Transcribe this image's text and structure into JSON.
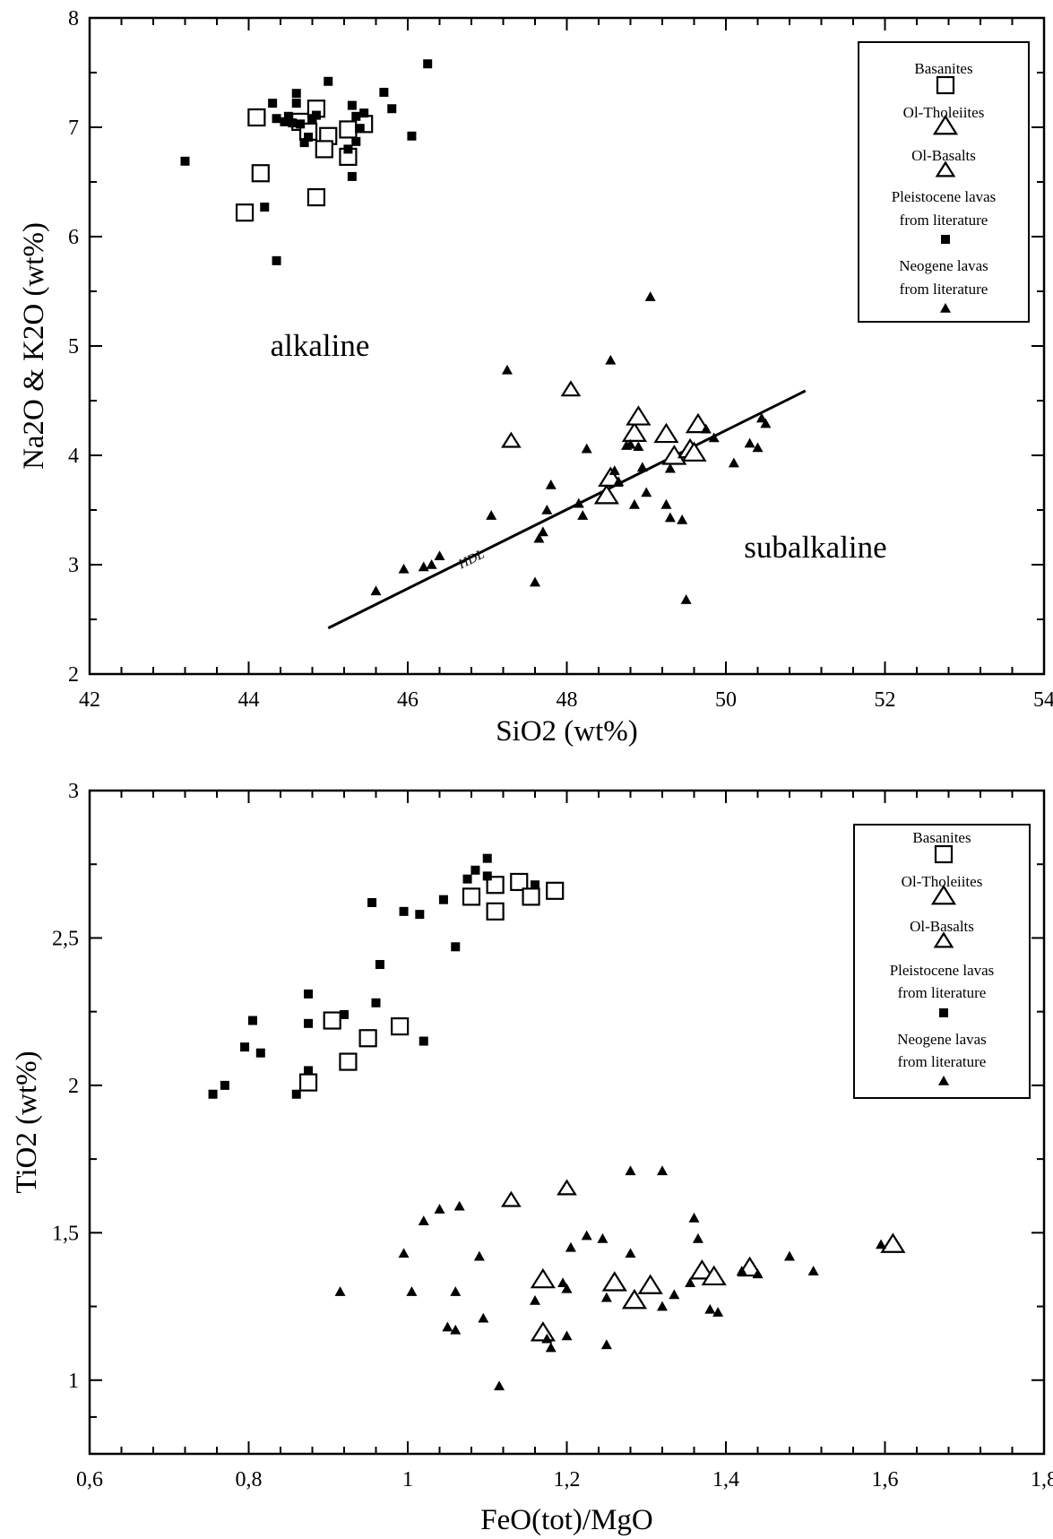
{
  "chart_data": [
    {
      "type": "scatter",
      "xlabel": "SiO2 (wt%)",
      "ylabel": "Na2O & K2O (wt%)",
      "xlim": [
        42,
        54
      ],
      "ylim": [
        2,
        8
      ],
      "xticks": [
        "42",
        "44",
        "46",
        "48",
        "50",
        "52",
        "54"
      ],
      "yticks": [
        "2",
        "3",
        "4",
        "5",
        "6",
        "7",
        "8"
      ],
      "annotations": {
        "upper": "alkaline",
        "lower": "subalkaline",
        "line": "HDL"
      },
      "line": {
        "label": "HDL",
        "points": [
          [
            45.0,
            2.42
          ],
          [
            51.0,
            4.59
          ]
        ]
      },
      "legend_position": "top-right",
      "legend": [
        {
          "label": "Basanites",
          "marker": "open-square"
        },
        {
          "label": "Ol-Tholeiites",
          "marker": "open-triangle"
        },
        {
          "label": "Ol-Basalts",
          "marker": "open-triangle-small"
        },
        {
          "label": "Pleistocene lavas from literature",
          "marker": "filled-square"
        },
        {
          "label": "Neogene lavas from literature",
          "marker": "filled-triangle"
        }
      ],
      "series": [
        {
          "name": "Basanites",
          "marker": "open-square",
          "points": [
            [
              44.1,
              7.09
            ],
            [
              44.15,
              6.58
            ],
            [
              43.95,
              6.22
            ],
            [
              44.85,
              6.36
            ],
            [
              44.65,
              7.05
            ],
            [
              44.85,
              7.17
            ],
            [
              45.0,
              6.92
            ],
            [
              44.95,
              6.8
            ],
            [
              45.25,
              6.98
            ],
            [
              45.45,
              7.03
            ],
            [
              45.25,
              6.73
            ],
            [
              44.75,
              6.96
            ]
          ]
        },
        {
          "name": "Ol-Tholeiites",
          "marker": "open-triangle",
          "points": [
            [
              48.55,
              3.79
            ],
            [
              48.85,
              4.2
            ],
            [
              48.9,
              4.35
            ],
            [
              49.25,
              4.19
            ],
            [
              49.35,
              3.99
            ],
            [
              49.55,
              4.05
            ],
            [
              49.6,
              4.02
            ],
            [
              49.65,
              4.28
            ],
            [
              48.5,
              3.63
            ]
          ]
        },
        {
          "name": "Ol-Basalts",
          "marker": "open-triangle-small",
          "points": [
            [
              48.05,
              4.6
            ],
            [
              47.3,
              4.13
            ]
          ]
        },
        {
          "name": "Pleistocene lavas from literature",
          "marker": "filled-square",
          "points": [
            [
              43.2,
              6.69
            ],
            [
              44.3,
              7.22
            ],
            [
              44.35,
              7.08
            ],
            [
              44.45,
              7.05
            ],
            [
              44.5,
              7.1
            ],
            [
              44.55,
              7.04
            ],
            [
              44.6,
              7.31
            ],
            [
              44.6,
              7.22
            ],
            [
              44.65,
              7.03
            ],
            [
              44.7,
              6.86
            ],
            [
              44.75,
              6.91
            ],
            [
              44.8,
              7.08
            ],
            [
              45.0,
              7.42
            ],
            [
              45.3,
              7.2
            ],
            [
              45.35,
              7.1
            ],
            [
              45.4,
              6.99
            ],
            [
              45.35,
              6.87
            ],
            [
              45.25,
              6.8
            ],
            [
              45.3,
              6.55
            ],
            [
              45.7,
              7.32
            ],
            [
              45.8,
              7.17
            ],
            [
              46.05,
              6.92
            ],
            [
              46.25,
              7.58
            ],
            [
              44.2,
              6.27
            ],
            [
              44.35,
              5.78
            ],
            [
              44.85,
              7.11
            ],
            [
              45.45,
              7.13
            ]
          ]
        },
        {
          "name": "Neogene lavas from literature",
          "marker": "filled-triangle",
          "points": [
            [
              45.6,
              2.76
            ],
            [
              45.95,
              2.96
            ],
            [
              46.2,
              2.98
            ],
            [
              46.3,
              3.0
            ],
            [
              46.4,
              3.08
            ],
            [
              47.05,
              3.45
            ],
            [
              47.25,
              4.78
            ],
            [
              47.6,
              2.84
            ],
            [
              47.65,
              3.24
            ],
            [
              47.7,
              3.3
            ],
            [
              47.75,
              3.5
            ],
            [
              47.8,
              3.73
            ],
            [
              48.15,
              3.56
            ],
            [
              48.2,
              3.45
            ],
            [
              48.25,
              4.06
            ],
            [
              48.55,
              4.87
            ],
            [
              48.6,
              3.86
            ],
            [
              48.65,
              3.76
            ],
            [
              48.75,
              4.09
            ],
            [
              48.8,
              4.1
            ],
            [
              48.85,
              3.55
            ],
            [
              48.9,
              4.08
            ],
            [
              48.95,
              3.89
            ],
            [
              49.0,
              3.66
            ],
            [
              49.05,
              5.45
            ],
            [
              49.25,
              3.55
            ],
            [
              49.3,
              3.43
            ],
            [
              49.3,
              3.88
            ],
            [
              49.45,
              3.41
            ],
            [
              49.5,
              2.68
            ],
            [
              49.75,
              4.24
            ],
            [
              49.85,
              4.16
            ],
            [
              50.1,
              3.93
            ],
            [
              50.3,
              4.11
            ],
            [
              50.4,
              4.07
            ],
            [
              50.45,
              4.34
            ],
            [
              50.5,
              4.29
            ]
          ]
        }
      ]
    },
    {
      "type": "scatter",
      "xlabel": "FeO(tot)/MgO",
      "ylabel": "TiO2 (wt%)",
      "xlim": [
        0.6,
        1.8
      ],
      "ylim": [
        0.75,
        3
      ],
      "xticks": [
        "0,6",
        "0,8",
        "1",
        "1,2",
        "1,4",
        "1,6",
        "1,8"
      ],
      "yticks": [
        "1",
        "1,5",
        "2",
        "2,5",
        "3"
      ],
      "legend_position": "top-right",
      "legend": [
        {
          "label": "Basanites",
          "marker": "open-square"
        },
        {
          "label": "Ol-Tholeiites",
          "marker": "open-triangle"
        },
        {
          "label": "Ol-Basalts",
          "marker": "open-triangle-small"
        },
        {
          "label": "Pleistocene lavas from literature",
          "marker": "filled-square"
        },
        {
          "label": "Neogene lavas from literature",
          "marker": "filled-triangle"
        }
      ],
      "series": [
        {
          "name": "Basanites",
          "marker": "open-square",
          "points": [
            [
              0.875,
              2.01
            ],
            [
              0.905,
              2.22
            ],
            [
              0.925,
              2.08
            ],
            [
              0.95,
              2.16
            ],
            [
              0.99,
              2.2
            ],
            [
              1.08,
              2.64
            ],
            [
              1.11,
              2.59
            ],
            [
              1.11,
              2.68
            ],
            [
              1.14,
              2.69
            ],
            [
              1.155,
              2.64
            ],
            [
              1.185,
              2.66
            ]
          ]
        },
        {
          "name": "Ol-Tholeiites",
          "marker": "open-triangle",
          "points": [
            [
              1.17,
              1.34
            ],
            [
              1.17,
              1.16
            ],
            [
              1.26,
              1.33
            ],
            [
              1.285,
              1.27
            ],
            [
              1.305,
              1.32
            ],
            [
              1.37,
              1.37
            ],
            [
              1.385,
              1.35
            ],
            [
              1.43,
              1.38
            ],
            [
              1.61,
              1.46
            ]
          ]
        },
        {
          "name": "Ol-Basalts",
          "marker": "open-triangle-small",
          "points": [
            [
              1.13,
              1.61
            ],
            [
              1.2,
              1.65
            ]
          ]
        },
        {
          "name": "Pleistocene lavas from literature",
          "marker": "filled-square",
          "points": [
            [
              0.755,
              1.97
            ],
            [
              0.77,
              2.0
            ],
            [
              0.795,
              2.13
            ],
            [
              0.805,
              2.22
            ],
            [
              0.815,
              2.11
            ],
            [
              0.86,
              1.97
            ],
            [
              0.875,
              2.05
            ],
            [
              0.875,
              2.31
            ],
            [
              0.875,
              2.21
            ],
            [
              0.92,
              2.24
            ],
            [
              0.955,
              2.62
            ],
            [
              0.96,
              2.28
            ],
            [
              0.965,
              2.41
            ],
            [
              0.995,
              2.59
            ],
            [
              1.015,
              2.58
            ],
            [
              1.02,
              2.15
            ],
            [
              1.045,
              2.63
            ],
            [
              1.06,
              2.47
            ],
            [
              1.075,
              2.7
            ],
            [
              1.085,
              2.73
            ],
            [
              1.1,
              2.77
            ],
            [
              1.1,
              2.71
            ],
            [
              1.16,
              2.68
            ]
          ]
        },
        {
          "name": "Neogene lavas from literature",
          "marker": "filled-triangle",
          "points": [
            [
              0.915,
              1.3
            ],
            [
              0.995,
              1.43
            ],
            [
              1.005,
              1.3
            ],
            [
              1.02,
              1.54
            ],
            [
              1.04,
              1.58
            ],
            [
              1.05,
              1.18
            ],
            [
              1.06,
              1.17
            ],
            [
              1.06,
              1.3
            ],
            [
              1.065,
              1.59
            ],
            [
              1.09,
              1.42
            ],
            [
              1.095,
              1.21
            ],
            [
              1.115,
              0.98
            ],
            [
              1.16,
              1.27
            ],
            [
              1.175,
              1.14
            ],
            [
              1.18,
              1.11
            ],
            [
              1.195,
              1.33
            ],
            [
              1.2,
              1.31
            ],
            [
              1.2,
              1.15
            ],
            [
              1.205,
              1.45
            ],
            [
              1.225,
              1.49
            ],
            [
              1.245,
              1.48
            ],
            [
              1.25,
              1.28
            ],
            [
              1.25,
              1.12
            ],
            [
              1.28,
              1.71
            ],
            [
              1.28,
              1.43
            ],
            [
              1.32,
              1.71
            ],
            [
              1.32,
              1.25
            ],
            [
              1.335,
              1.29
            ],
            [
              1.355,
              1.33
            ],
            [
              1.36,
              1.55
            ],
            [
              1.365,
              1.48
            ],
            [
              1.38,
              1.24
            ],
            [
              1.39,
              1.23
            ],
            [
              1.42,
              1.37
            ],
            [
              1.44,
              1.36
            ],
            [
              1.48,
              1.42
            ],
            [
              1.51,
              1.37
            ],
            [
              1.595,
              1.46
            ]
          ]
        }
      ]
    }
  ]
}
